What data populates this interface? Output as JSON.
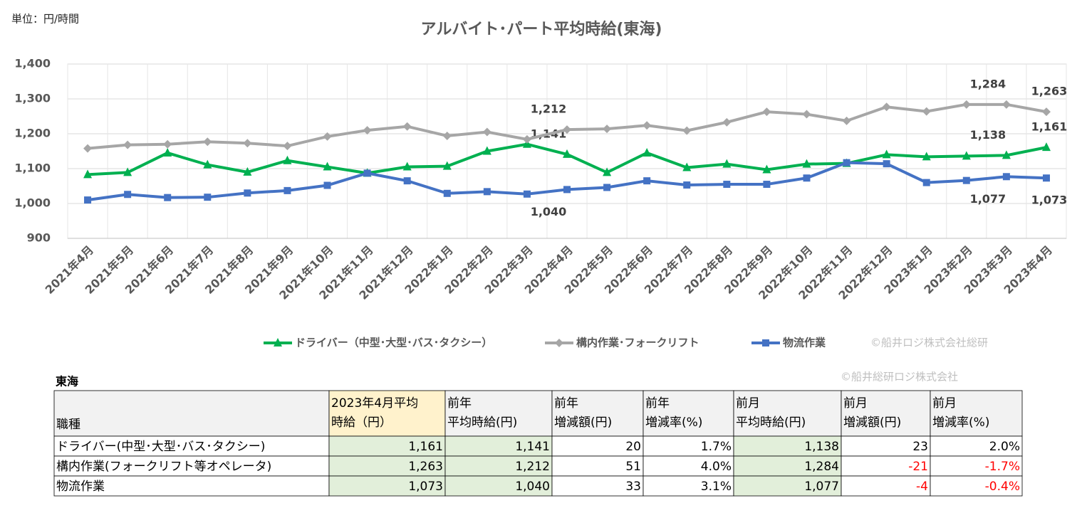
{
  "chart_data": {
    "type": "line",
    "title": "アルバイト･パート平均時給(東海)",
    "unit_label": "単位：円/時間",
    "copyright": "©船井ロジ株式会社総研",
    "categories": [
      "2021年4月",
      "2021年5月",
      "2021年6月",
      "2021年7月",
      "2021年8月",
      "2021年9月",
      "2021年10月",
      "2021年11月",
      "2021年12月",
      "2022年1月",
      "2022年2月",
      "2022年3月",
      "2022年4月",
      "2022年5月",
      "2022年6月",
      "2022年7月",
      "2022年8月",
      "2022年9月",
      "2022年10月",
      "2022年11月",
      "2022年12月",
      "2023年1月",
      "2023年2月",
      "2023年3月",
      "2023年4月"
    ],
    "ylim": [
      900,
      1400
    ],
    "yticks": [
      900,
      {
        "value": 1000,
        "label": "1,000"
      },
      {
        "value": 1100,
        "label": "1,100"
      },
      {
        "value": 1200,
        "label": "1,200"
      },
      {
        "value": 1300,
        "label": "1,300"
      },
      {
        "value": 1400,
        "label": "1,400"
      }
    ],
    "grid": true,
    "legend": "bottom",
    "series": [
      {
        "name": "ドライバー（中型･大型･バス･タクシー）",
        "color": "#00b050",
        "marker": "triangle",
        "values": [
          1083,
          1089,
          1145,
          1111,
          1090,
          1123,
          1105,
          1087,
          1105,
          1107,
          1150,
          1170,
          1141,
          1089,
          1145,
          1103,
          1113,
          1097,
          1113,
          1115,
          1140,
          1134,
          1136,
          1138,
          1161
        ],
        "value_labels": [
          null,
          null,
          null,
          null,
          null,
          null,
          null,
          null,
          null,
          null,
          null,
          null,
          "1,141",
          null,
          null,
          null,
          null,
          null,
          null,
          null,
          null,
          null,
          null,
          "1,138",
          "1,161"
        ]
      },
      {
        "name": "構内作業･フォークリフト",
        "color": "#a6a6a6",
        "marker": "diamond",
        "values": [
          1158,
          1168,
          1170,
          1177,
          1173,
          1165,
          1192,
          1210,
          1221,
          1194,
          1205,
          1184,
          1212,
          1214,
          1224,
          1209,
          1233,
          1263,
          1256,
          1237,
          1277,
          1264,
          1284,
          1284,
          1263
        ],
        "value_labels": [
          null,
          null,
          null,
          null,
          null,
          null,
          null,
          null,
          null,
          null,
          null,
          null,
          "1,212",
          null,
          null,
          null,
          null,
          null,
          null,
          null,
          null,
          null,
          null,
          "1,284",
          "1,263"
        ]
      },
      {
        "name": "物流作業",
        "color": "#4472c4",
        "marker": "square",
        "values": [
          1010,
          1026,
          1017,
          1018,
          1030,
          1037,
          1052,
          1087,
          1065,
          1029,
          1034,
          1027,
          1040,
          1046,
          1065,
          1053,
          1055,
          1055,
          1073,
          1117,
          1114,
          1060,
          1066,
          1077,
          1073
        ],
        "value_labels": [
          null,
          null,
          null,
          null,
          null,
          null,
          null,
          null,
          null,
          null,
          null,
          null,
          "1,040",
          null,
          null,
          null,
          null,
          null,
          null,
          null,
          null,
          null,
          null,
          "1,077",
          "1,073"
        ]
      }
    ]
  },
  "table": {
    "caption": "東海",
    "copyright": "©船井総研ロジ株式会社",
    "header": [
      [
        "職種"
      ],
      [
        "2023年4月平均",
        "時給（円）"
      ],
      [
        "前年",
        "平均時給(円)"
      ],
      [
        "前年",
        "増減額(円)"
      ],
      [
        "前年",
        "増減率(%)"
      ],
      [
        "前月",
        "平均時給(円)"
      ],
      [
        "前月",
        "増減額(円)"
      ],
      [
        "前月",
        "増減率(%)"
      ]
    ],
    "rows": [
      [
        "ドライバー(中型･大型･バス･タクシー)",
        "1,161",
        "1,141",
        "20",
        "1.7%",
        "1,138",
        "23",
        "2.0%"
      ],
      [
        "構内作業(フォークリフト等オペレータ)",
        "1,263",
        "1,212",
        "51",
        "4.0%",
        "1,284",
        "-21",
        "-1.7%"
      ],
      [
        "物流作業",
        "1,073",
        "1,040",
        "33",
        "3.1%",
        "1,077",
        "-4",
        "-0.4%"
      ]
    ]
  }
}
